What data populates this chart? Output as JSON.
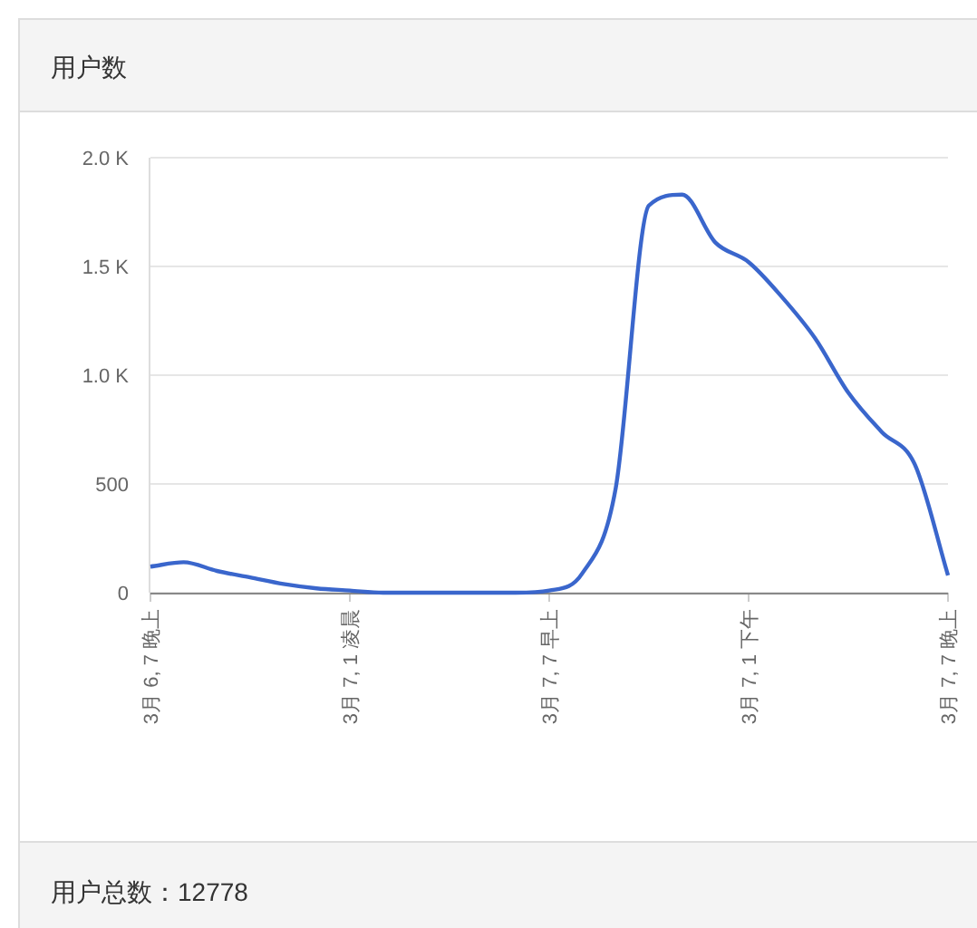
{
  "chart_data": {
    "type": "line",
    "title": "用户数",
    "annotations": [
      "用户总数：12778"
    ],
    "categories": [
      "3月 6, 7 晚上",
      null,
      null,
      null,
      null,
      null,
      "3月 7, 1 凌晨",
      null,
      null,
      null,
      null,
      null,
      "3月 7, 7 早上",
      null,
      null,
      null,
      null,
      null,
      "3月 7, 1 下午",
      null,
      null,
      null,
      null,
      null,
      "3月 7, 7 晚上"
    ],
    "series": [
      {
        "color": "#3a66cc",
        "values": [
          120,
          140,
          100,
          70,
          40,
          20,
          10,
          0,
          0,
          0,
          0,
          0,
          10,
          90,
          480,
          1780,
          1830,
          1610,
          1520,
          1360,
          1170,
          920,
          740,
          590,
          80
        ]
      }
    ],
    "ylim": [
      0,
      2000
    ],
    "yticks": [
      0,
      500,
      {
        "value": 1000,
        "label": "1.0 K"
      },
      {
        "value": 1500,
        "label": "1.5 K"
      },
      {
        "value": 2000,
        "label": "2.0 K"
      }
    ],
    "grid": "y",
    "marker": "none",
    "line_style": "solid"
  }
}
